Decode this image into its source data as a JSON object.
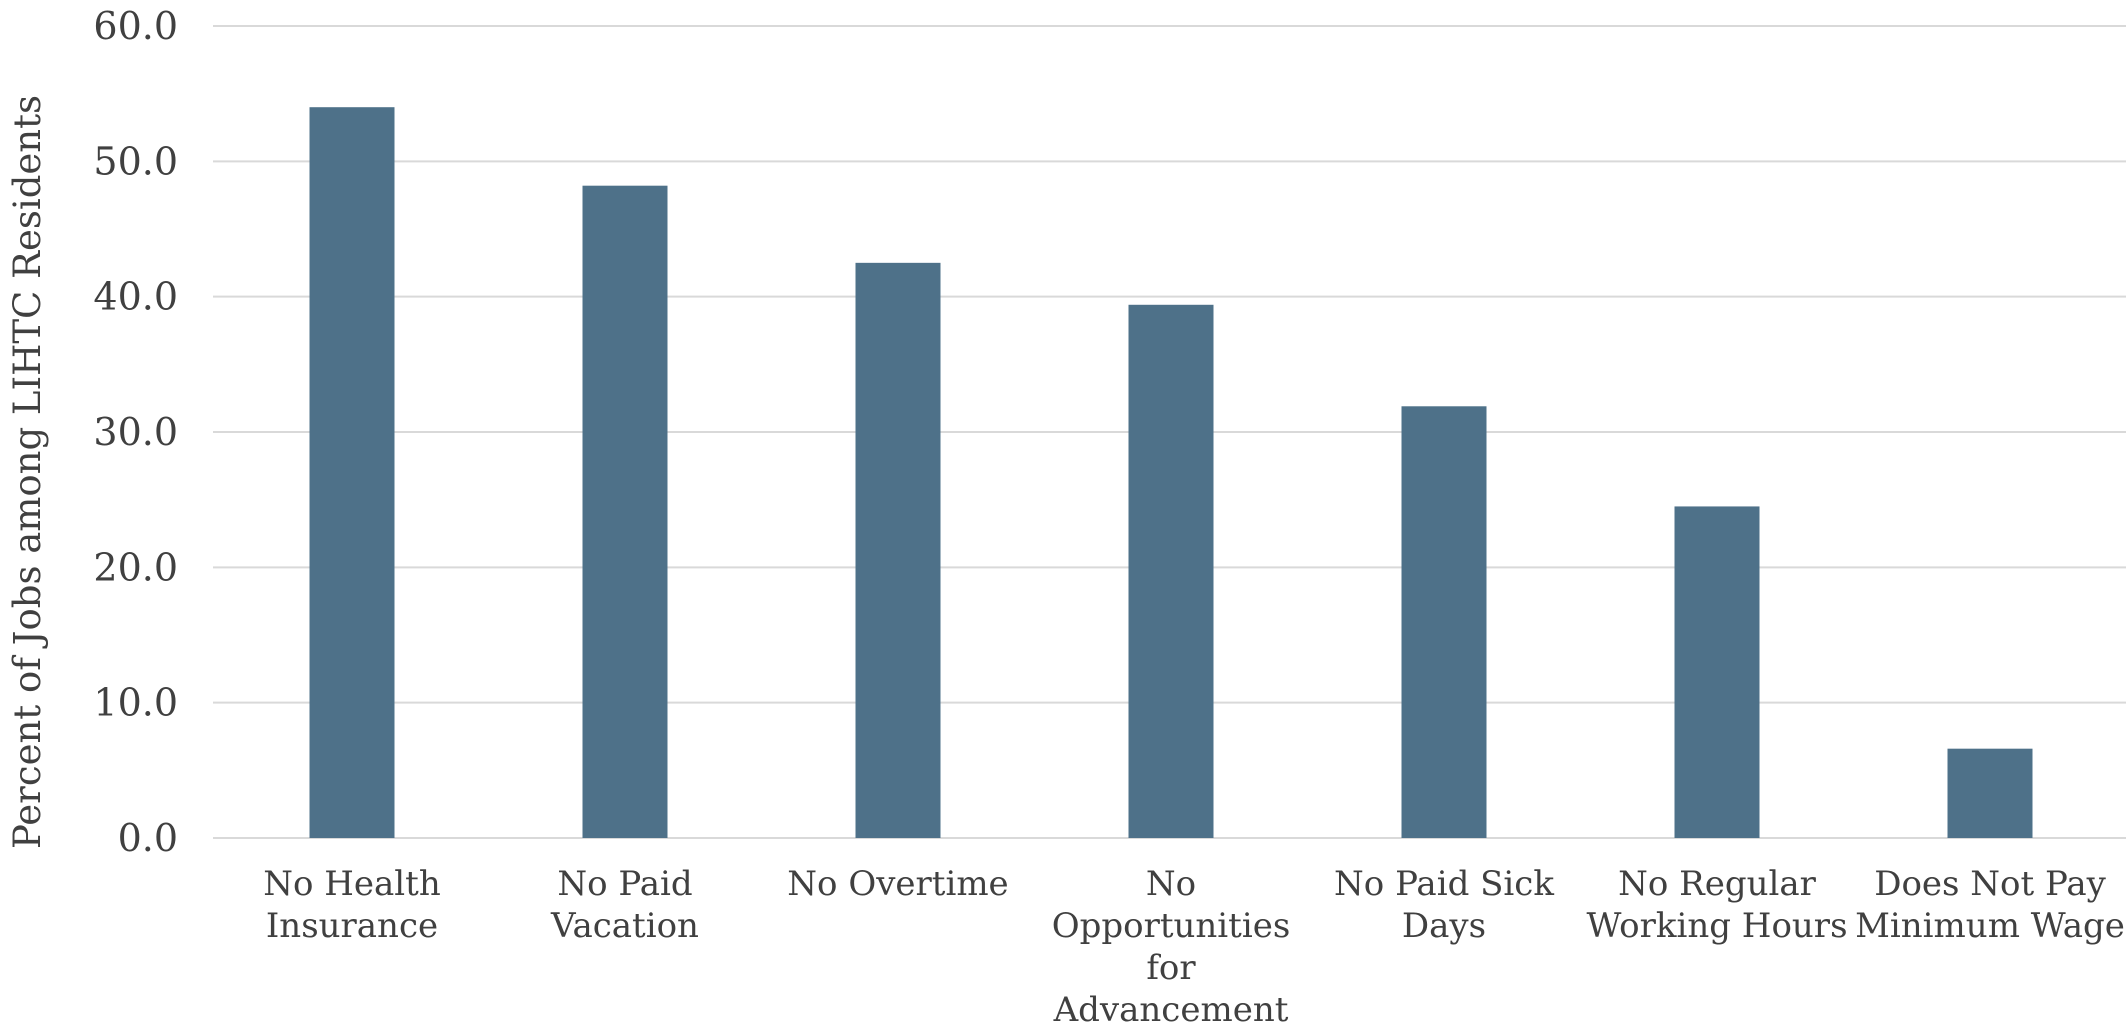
{
  "chart_data": {
    "type": "bar",
    "ylabel": "Percent of Jobs among LIHTC Residents",
    "ylim": [
      0,
      60
    ],
    "yticks": [
      "0.0",
      "10.0",
      "20.0",
      "30.0",
      "40.0",
      "50.0",
      "60.0"
    ],
    "grid": true,
    "bar_color": "#4e7189",
    "categories": [
      [
        "No Health",
        "Insurance"
      ],
      [
        "No Paid",
        "Vacation"
      ],
      [
        "No Overtime"
      ],
      [
        "No",
        "Opportunities",
        "for",
        "Advancement"
      ],
      [
        "No Paid Sick",
        "Days"
      ],
      [
        "No Regular",
        "Working Hours"
      ],
      [
        "Does Not Pay",
        "Minimum Wage"
      ]
    ],
    "values": [
      54.0,
      48.2,
      42.5,
      39.4,
      31.9,
      24.5,
      6.6
    ]
  }
}
